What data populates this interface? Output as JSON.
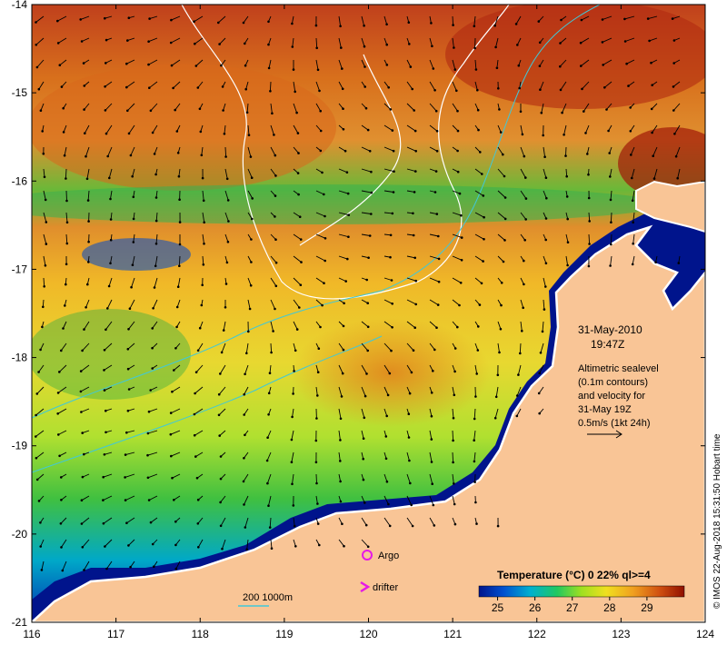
{
  "map": {
    "lon_ticks": [
      "116",
      "117",
      "118",
      "119",
      "120",
      "121",
      "122",
      "123",
      "124"
    ],
    "lat_ticks": [
      "-14",
      "-15",
      "-16",
      "-17",
      "-18",
      "-19",
      "-20",
      "-21"
    ]
  },
  "annotation": {
    "date": "31-May-2010",
    "time": "19:47Z",
    "lines": [
      "Altimetric sealevel",
      "(0.1m contours)",
      "and velocity for",
      "31-May 19Z",
      "0.5m/s (1kt 24h)"
    ]
  },
  "legend": {
    "argo_label": "Argo",
    "drifter_label": "drifter",
    "depth_label": "200  1000m"
  },
  "colorbar": {
    "title": "Temperature (°C) 0 22% ql>=4",
    "ticks": [
      "25",
      "26",
      "27",
      "28",
      "29"
    ]
  },
  "credit": "© IMOS 22-Aug-2018 15:31:50 Hobart time",
  "colors": {
    "land": "#f9c596",
    "coast_shallow": "#00148c",
    "arrow": "#000000",
    "argo": "#e619e6",
    "isobath": "#40c8d8"
  }
}
